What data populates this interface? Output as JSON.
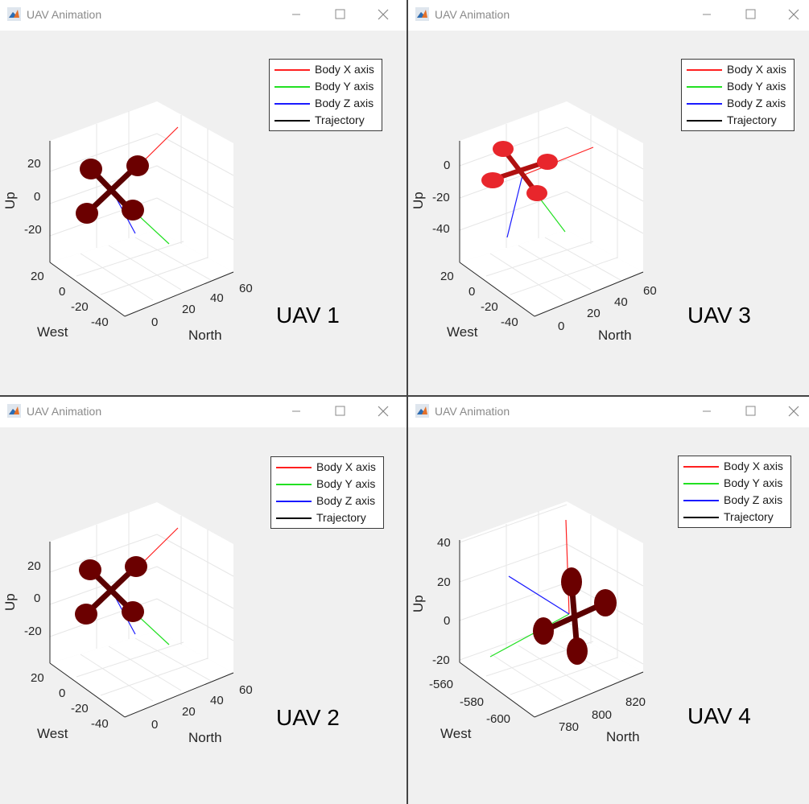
{
  "colors": {
    "body_x": "#ff2020",
    "body_y": "#22e022",
    "body_z": "#1a1aff",
    "trajectory": "#000000",
    "rotor_dark": "#6b0000",
    "rotor_bright": "#e8262c",
    "grid": "#e6e6e6",
    "axis": "#262626"
  },
  "windows": [
    {
      "title": "UAV Animation",
      "uav_label": "UAV 1",
      "legend": [
        "Body X axis",
        "Body Y axis",
        "Body Z axis",
        "Trajectory"
      ],
      "up_ticks": [
        "20",
        "0",
        "-20"
      ],
      "west_ticks": [
        "20",
        "0",
        "-20",
        "-40"
      ],
      "north_ticks": [
        "0",
        "20",
        "40",
        "60"
      ],
      "labels": {
        "up": "Up",
        "west": "West",
        "north": "North"
      }
    },
    {
      "title": "UAV Animation",
      "uav_label": "UAV 3",
      "legend": [
        "Body X axis",
        "Body Y axis",
        "Body Z axis",
        "Trajectory"
      ],
      "up_ticks": [
        "0",
        "-20",
        "-40"
      ],
      "west_ticks": [
        "20",
        "0",
        "-20",
        "-40"
      ],
      "north_ticks": [
        "0",
        "20",
        "40",
        "60"
      ],
      "labels": {
        "up": "Up",
        "west": "West",
        "north": "North"
      }
    },
    {
      "title": "UAV Animation",
      "uav_label": "UAV 2",
      "legend": [
        "Body X axis",
        "Body Y axis",
        "Body Z axis",
        "Trajectory"
      ],
      "up_ticks": [
        "20",
        "0",
        "-20"
      ],
      "west_ticks": [
        "20",
        "0",
        "-20",
        "-40"
      ],
      "north_ticks": [
        "0",
        "20",
        "40",
        "60"
      ],
      "labels": {
        "up": "Up",
        "west": "West",
        "north": "North"
      }
    },
    {
      "title": "UAV Animation",
      "uav_label": "UAV 4",
      "legend": [
        "Body X axis",
        "Body Y axis",
        "Body Z axis",
        "Trajectory"
      ],
      "up_ticks": [
        "40",
        "20",
        "0",
        "-20"
      ],
      "west_ticks": [
        "-560",
        "-580",
        "-600"
      ],
      "north_ticks": [
        "780",
        "800",
        "820"
      ],
      "labels": {
        "up": "Up",
        "west": "West",
        "north": "North"
      }
    }
  ]
}
